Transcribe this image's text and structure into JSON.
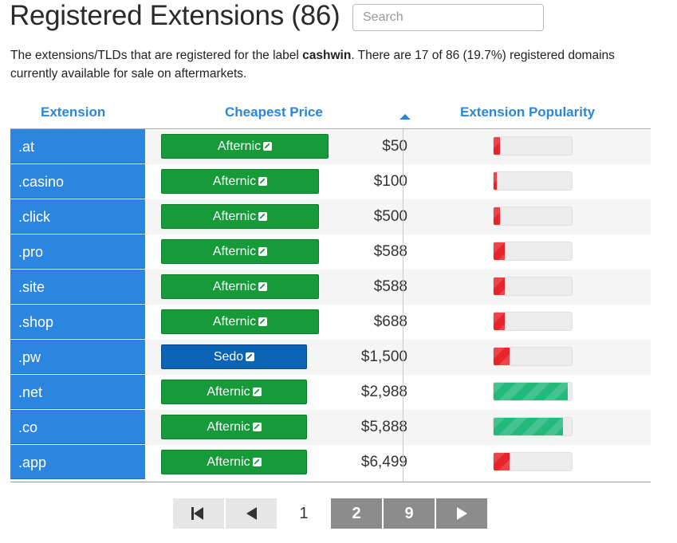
{
  "title": "Registered Extensions (86)",
  "search": {
    "placeholder": "Search"
  },
  "description": {
    "before": "The extensions/TLDs that are registered for the label ",
    "label": "cashwin",
    "after": ". There are 17 of 86 (19.7%) registered domains currently available for sale on aftermarkets."
  },
  "table": {
    "headers": {
      "extension": "Extension",
      "price": "Cheapest Price",
      "popularity": "Extension Popularity"
    },
    "rows": [
      {
        "ext": ".at",
        "market": "Afternic",
        "price": "$50",
        "popularity": 0.08,
        "pop_color": "#e8242a"
      },
      {
        "ext": ".casino",
        "market": "Afternic",
        "price": "$100",
        "popularity": 0.04,
        "pop_color": "#e8242a"
      },
      {
        "ext": ".click",
        "market": "Afternic",
        "price": "$500",
        "popularity": 0.08,
        "pop_color": "#e8242a"
      },
      {
        "ext": ".pro",
        "market": "Afternic",
        "price": "$588",
        "popularity": 0.14,
        "pop_color": "#e8242a"
      },
      {
        "ext": ".site",
        "market": "Afternic",
        "price": "$588",
        "popularity": 0.14,
        "pop_color": "#e8242a"
      },
      {
        "ext": ".shop",
        "market": "Afternic",
        "price": "$688",
        "popularity": 0.14,
        "pop_color": "#e8242a"
      },
      {
        "ext": ".pw",
        "market": "Sedo",
        "price": "$1,500",
        "popularity": 0.2,
        "pop_color": "#e8242a"
      },
      {
        "ext": ".net",
        "market": "Afternic",
        "price": "$2,988",
        "popularity": 0.95,
        "pop_color": "#23b97c"
      },
      {
        "ext": ".co",
        "market": "Afternic",
        "price": "$5,888",
        "popularity": 0.89,
        "pop_color": "#23b97c"
      },
      {
        "ext": ".app",
        "market": "Afternic",
        "price": "$6,499",
        "popularity": 0.2,
        "pop_color": "#e8242a"
      }
    ]
  },
  "pagination": {
    "current": "1",
    "page2": "2",
    "page9": "9"
  },
  "colors": {
    "accent": "#2b86e0",
    "afternic": "#179b3a",
    "sedo": "#0a63b5"
  }
}
